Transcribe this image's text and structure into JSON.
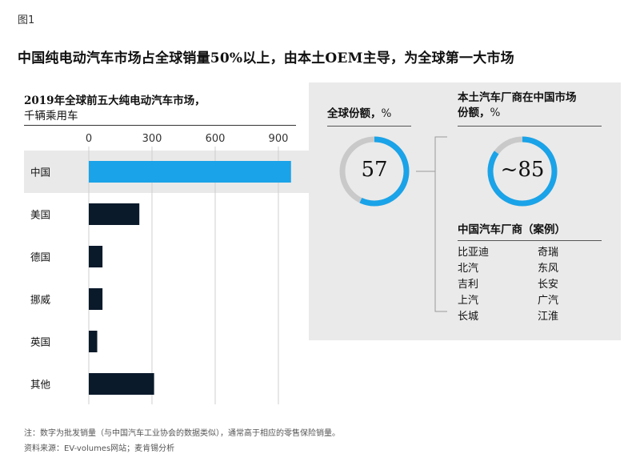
{
  "figure_label": "图1",
  "headline": "中国纯电动汽车市场占全球销量50%以上，由本土OEM主导，为全球第一大市场",
  "chart_data": {
    "type": "bar",
    "orientation": "horizontal",
    "title": "2019年全球前五大纯电动汽车市场，",
    "subtitle": "千辆乘用车",
    "categories": [
      "中国",
      "美国",
      "德国",
      "挪威",
      "英国",
      "其他"
    ],
    "values": [
      960,
      240,
      65,
      65,
      40,
      310
    ],
    "xlim": [
      0,
      960
    ],
    "ticks": [
      0,
      300,
      600,
      900
    ],
    "grid": true,
    "highlight_category": "中国",
    "colors": {
      "highlight": "#1aa3e8",
      "default": "#0b1a2b"
    }
  },
  "global_share": {
    "title": "全球份额，",
    "unit": "%",
    "value": 57,
    "value_label": "57"
  },
  "local_oem_share": {
    "title_line1": "本土汽车厂商在中国市场",
    "title_line2": "份额，",
    "unit": "%",
    "value": 85,
    "value_label": "~85"
  },
  "oem_list": {
    "title": "中国汽车厂商（案例）",
    "items": [
      "比亚迪",
      "奇瑞",
      "北汽",
      "东风",
      "吉利",
      "长安",
      "上汽",
      "广汽",
      "长城",
      "江淮"
    ]
  },
  "footnotes": {
    "note": "注：数字为批发销量（与中国汽车工业协会的数据类似），通常高于相应的零售保险销量。",
    "source": "资料来源：EV-volumes网站；麦肯锡分析"
  },
  "colors": {
    "ring": "#1aa3e8",
    "ring_track": "#c9c9c9",
    "panel": "#eaeaea"
  }
}
